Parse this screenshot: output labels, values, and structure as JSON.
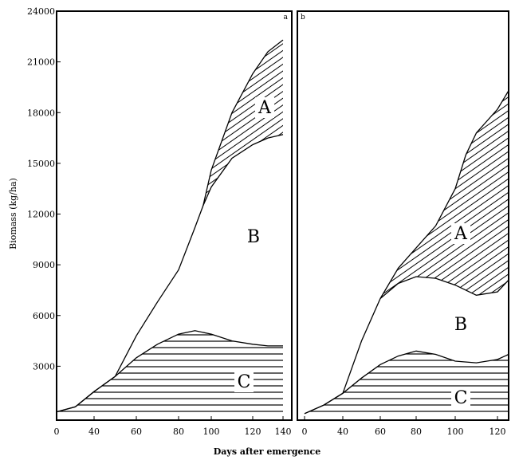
{
  "chart_data": {
    "type": "area",
    "xlabel": "Days after emergence",
    "ylabel": "Biomass (kg/ha)",
    "ylim": [
      0,
      24000
    ],
    "yticks": [
      3000,
      6000,
      9000,
      12000,
      15000,
      18000,
      21000,
      24000
    ],
    "grid": false,
    "panels": [
      {
        "label": "a",
        "xticks": [
          0,
          40,
          60,
          80,
          100,
          120,
          140
        ],
        "xlim": [
          0,
          140
        ],
        "series": [
          {
            "name": "C",
            "fill": "horizontal-hatch",
            "lower": "zero",
            "x": [
              0,
              20,
              40,
              50,
              60,
              70,
              80,
              90,
              100,
              110,
              120,
              130,
              140
            ],
            "y": [
              300,
              600,
              1500,
              2400,
              3500,
              4300,
              4900,
              5100,
              4900,
              4500,
              4300,
              4200,
              4200
            ]
          },
          {
            "name": "B",
            "fill": "none",
            "lower": "C",
            "x": [
              0,
              20,
              40,
              50,
              60,
              70,
              80,
              90,
              95,
              100,
              110,
              120,
              130,
              140
            ],
            "y": [
              300,
              600,
              1500,
              2400,
              4800,
              6800,
              8700,
              11200,
              12500,
              13600,
              15300,
              16100,
              16500,
              16700
            ]
          },
          {
            "name": "A",
            "fill": "diagonal-hatch",
            "lower": "B",
            "x": [
              95,
              100,
              110,
              120,
              130,
              140
            ],
            "y": [
              12500,
              14600,
              18000,
              20300,
              21600,
              22300
            ]
          }
        ]
      },
      {
        "label": "b",
        "xticks": [
          0,
          40,
          60,
          80,
          100,
          120
        ],
        "xlim": [
          0,
          128
        ],
        "series": [
          {
            "name": "C",
            "fill": "horizontal-hatch",
            "lower": "zero",
            "x": [
              0,
              20,
              40,
              50,
              60,
              70,
              80,
              90,
              100,
              110,
              120,
              128
            ],
            "y": [
              200,
              700,
              1400,
              2300,
              3100,
              3600,
              3900,
              3700,
              3300,
              3200,
              3400,
              3700
            ]
          },
          {
            "name": "B",
            "fill": "none",
            "lower": "C",
            "x": [
              0,
              20,
              40,
              50,
              60,
              70,
              80,
              90,
              100,
              110,
              120,
              128
            ],
            "y": [
              200,
              700,
              1400,
              4500,
              7000,
              7900,
              8300,
              8200,
              7800,
              7200,
              7400,
              8100
            ]
          },
          {
            "name": "A",
            "fill": "diagonal-hatch",
            "lower": "B",
            "x": [
              60,
              70,
              80,
              90,
              100,
              105,
              110,
              120,
              128
            ],
            "y": [
              7000,
              8800,
              10000,
              11300,
              13500,
              15500,
              16800,
              18200,
              19300
            ]
          }
        ]
      }
    ]
  }
}
